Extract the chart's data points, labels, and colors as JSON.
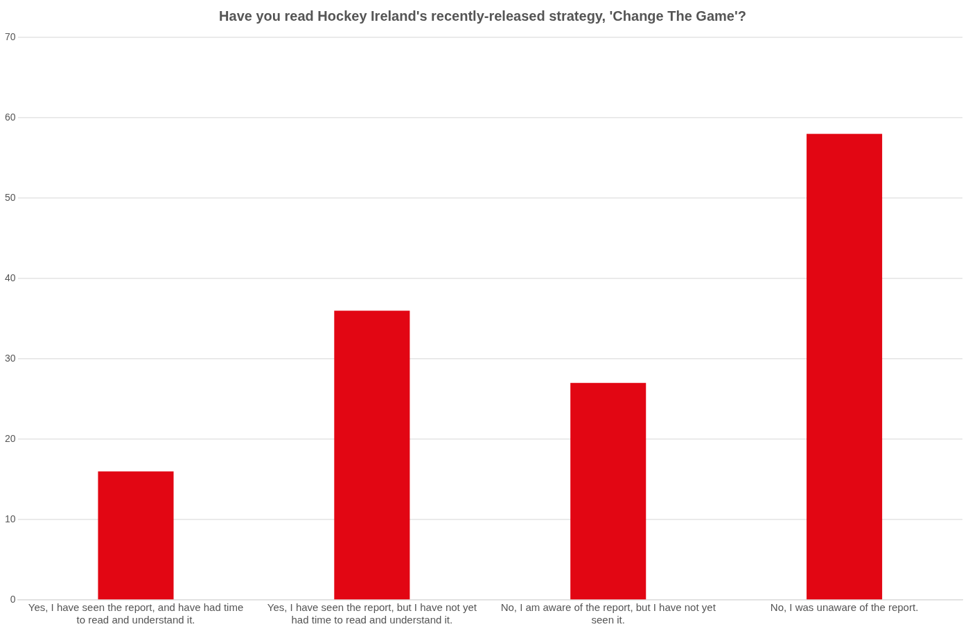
{
  "chart_data": {
    "type": "bar",
    "title": "Have you read Hockey Ireland's recently-released strategy, 'Change The Game'?",
    "categories": [
      "Yes, I have seen the report, and have had time to read and understand it.",
      "Yes, I have seen the report, but I have not yet had time to read and understand it.",
      "No, I am aware of the report, but I have not yet seen it.",
      "No, I was unaware of the report."
    ],
    "values": [
      16,
      36,
      27,
      58
    ],
    "color": "#e20613",
    "ylim": [
      0,
      70
    ],
    "yticks": [
      0,
      10,
      20,
      30,
      40,
      50,
      60,
      70
    ],
    "grid": "y",
    "legend": false
  }
}
